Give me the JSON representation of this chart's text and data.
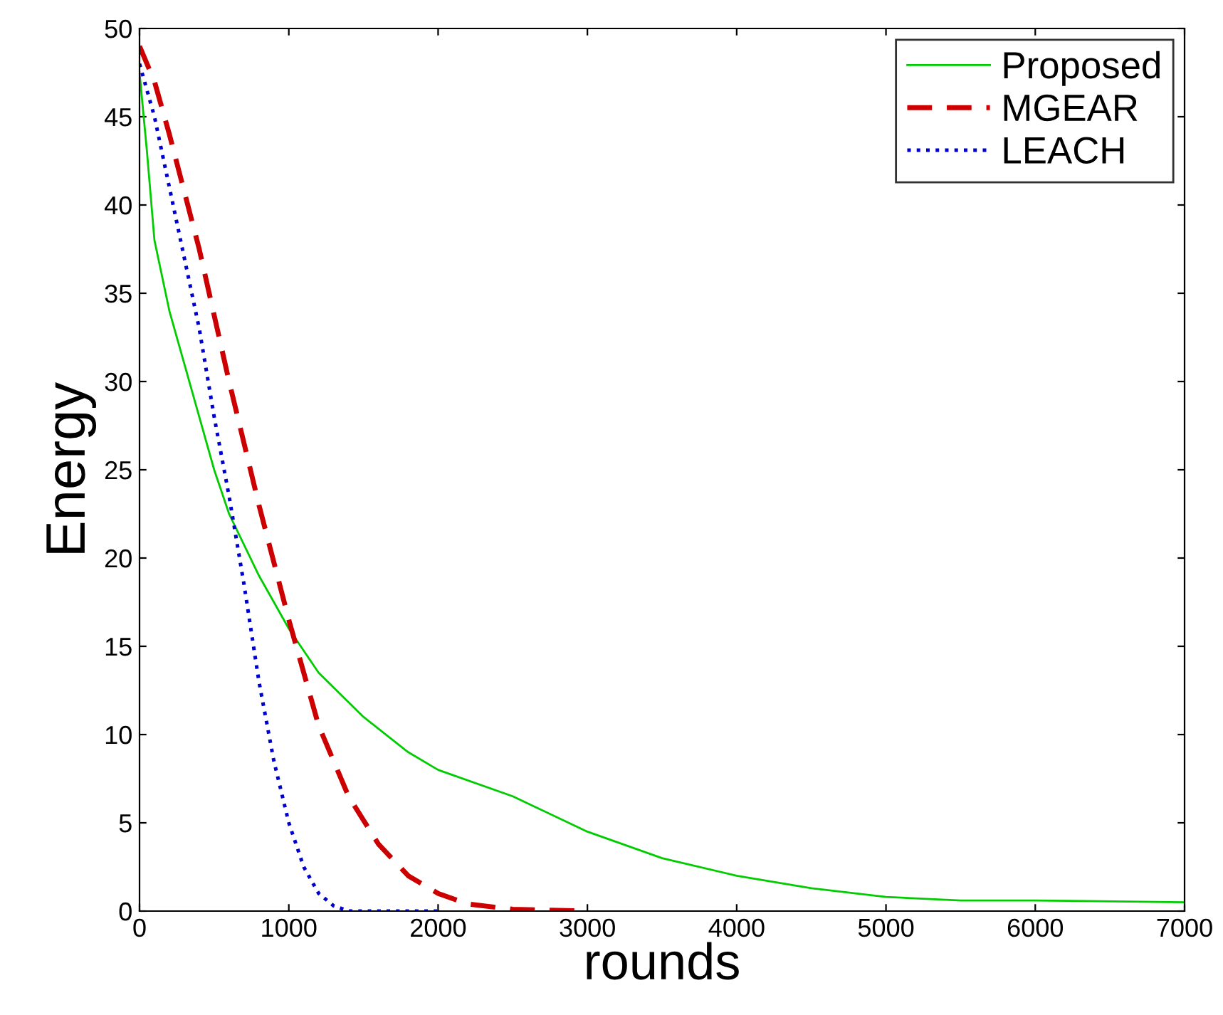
{
  "chart_data": {
    "type": "line",
    "xlabel": "rounds",
    "ylabel": "Energy",
    "xlim": [
      0,
      7000
    ],
    "xticks": [
      0,
      1000,
      2000,
      3000,
      4000,
      5000,
      6000,
      7000
    ],
    "ylim": [
      0,
      50
    ],
    "yticks": [
      0,
      5,
      10,
      15,
      20,
      25,
      30,
      35,
      40,
      45,
      50
    ],
    "grid": false,
    "legend": "top right",
    "marker": "none",
    "series": [
      {
        "name": "Proposed",
        "color": "#00cc00",
        "line_style": "solid",
        "x": [
          0,
          50,
          100,
          200,
          300,
          400,
          500,
          600,
          800,
          1000,
          1200,
          1500,
          1800,
          2000,
          2500,
          3000,
          3500,
          4000,
          4500,
          5000,
          5500,
          6000,
          7000
        ],
        "values": [
          47.5,
          43,
          38,
          34,
          31,
          28,
          25,
          22.5,
          19,
          16,
          13.5,
          11,
          9,
          8,
          6.5,
          4.5,
          3,
          2,
          1.3,
          0.8,
          0.6,
          0.6,
          0.5
        ]
      },
      {
        "name": "MGEAR",
        "color": "#cc0000",
        "line_style": "dashed",
        "x": [
          0,
          100,
          200,
          400,
          600,
          800,
          1000,
          1200,
          1400,
          1600,
          1800,
          2000,
          2200,
          2500,
          3000
        ],
        "values": [
          49,
          47,
          44,
          37.5,
          30,
          23,
          16.5,
          10.5,
          6.5,
          3.8,
          2,
          1,
          0.4,
          0.1,
          0
        ]
      },
      {
        "name": "LEACH",
        "color": "#0000cc",
        "line_style": "dotted",
        "x": [
          0,
          100,
          200,
          300,
          400,
          500,
          600,
          700,
          800,
          900,
          1000,
          1100,
          1200,
          1300,
          1400,
          2000
        ],
        "values": [
          48,
          45,
          41,
          37,
          33,
          28,
          23.5,
          18.5,
          13,
          8.5,
          5,
          2.5,
          1,
          0.3,
          0,
          0
        ]
      }
    ]
  }
}
